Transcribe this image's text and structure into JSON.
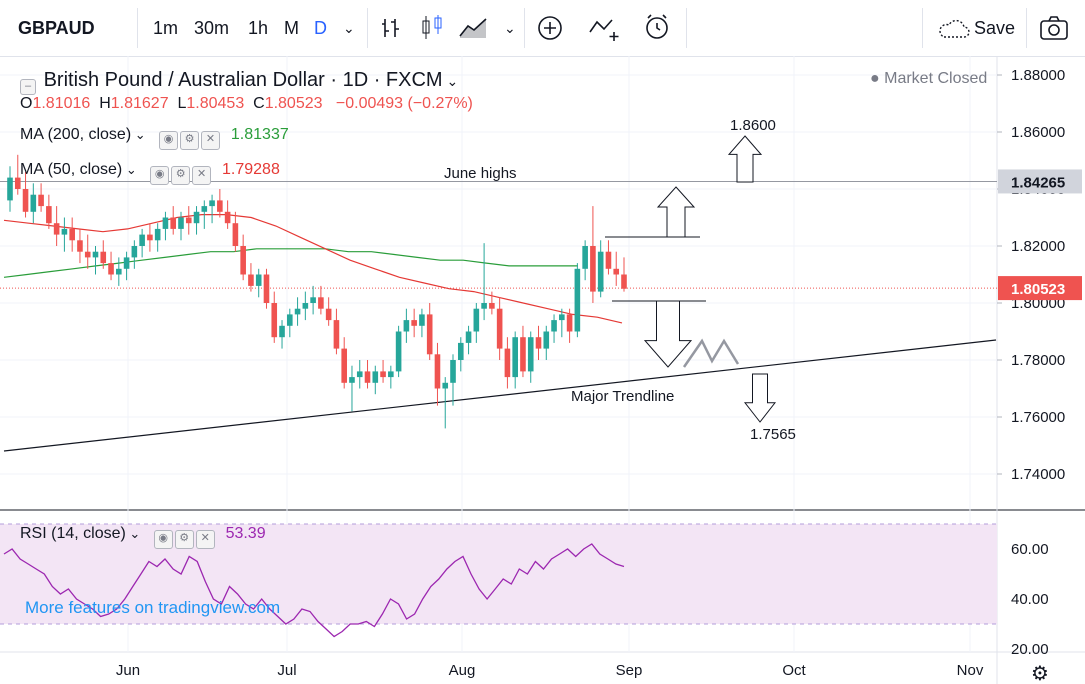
{
  "toolbar": {
    "symbol": "GBPAUD",
    "intervals": [
      "1m",
      "30m",
      "1h",
      "M",
      "D"
    ],
    "active_interval": "D",
    "save_label": "Save"
  },
  "legend": {
    "title": "British Pound / Australian Dollar · 1D · FXCM",
    "ohlc": {
      "O": "1.81016",
      "H": "1.81627",
      "L": "1.80453",
      "C": "1.80523",
      "change": "−0.00493 (−0.27%)"
    },
    "ma200": {
      "label": "MA (200, close)",
      "value": "1.81337",
      "color": "#2a9d3a"
    },
    "ma50": {
      "label": "MA (50, close)",
      "value": "1.79288",
      "color": "#e53935"
    },
    "market_status": "Market Closed"
  },
  "rsi": {
    "label": "RSI (14, close)",
    "value": "53.39",
    "color": "#9c27b0",
    "upper": 70,
    "lower": 30
  },
  "watermark": "More features on tradingview.com",
  "colors": {
    "up": "#26a69a",
    "down": "#ef5350",
    "rsi_band": "#f3e5f5"
  },
  "chart_data": {
    "type": "candlestick",
    "y_ticks": [
      "1.88000",
      "1.86000",
      "1.84000",
      "1.82000",
      "1.80000",
      "1.78000",
      "1.76000",
      "1.74000"
    ],
    "rsi_ticks": [
      "60.00",
      "40.00",
      "20.00"
    ],
    "x_labels": [
      "Jun",
      "Jul",
      "Aug",
      "Sep",
      "Oct",
      "Nov"
    ],
    "price_tags": [
      {
        "value": "1.84265",
        "bg": "#d1d4dc",
        "fg": "#131722"
      },
      {
        "value": "1.80523",
        "bg": "#ef5350",
        "fg": "#ffffff"
      }
    ],
    "annotations": {
      "june_highs": "June highs",
      "major_trendline": "Major Trendline",
      "target_up": "1.8600",
      "target_down": "1.7565"
    },
    "candles": [
      [
        1.836,
        1.848,
        1.832,
        1.844
      ],
      [
        1.844,
        1.852,
        1.838,
        1.84
      ],
      [
        1.84,
        1.846,
        1.83,
        1.832
      ],
      [
        1.832,
        1.842,
        1.828,
        1.838
      ],
      [
        1.838,
        1.842,
        1.832,
        1.834
      ],
      [
        1.834,
        1.838,
        1.826,
        1.828
      ],
      [
        1.828,
        1.834,
        1.82,
        1.824
      ],
      [
        1.824,
        1.83,
        1.818,
        1.826
      ],
      [
        1.826,
        1.83,
        1.818,
        1.822
      ],
      [
        1.822,
        1.826,
        1.814,
        1.818
      ],
      [
        1.818,
        1.824,
        1.812,
        1.816
      ],
      [
        1.816,
        1.82,
        1.81,
        1.818
      ],
      [
        1.818,
        1.822,
        1.812,
        1.814
      ],
      [
        1.814,
        1.818,
        1.808,
        1.81
      ],
      [
        1.81,
        1.816,
        1.806,
        1.812
      ],
      [
        1.812,
        1.818,
        1.808,
        1.816
      ],
      [
        1.816,
        1.822,
        1.812,
        1.82
      ],
      [
        1.82,
        1.826,
        1.816,
        1.824
      ],
      [
        1.824,
        1.828,
        1.818,
        1.822
      ],
      [
        1.822,
        1.828,
        1.818,
        1.826
      ],
      [
        1.826,
        1.832,
        1.822,
        1.83
      ],
      [
        1.83,
        1.834,
        1.824,
        1.826
      ],
      [
        1.826,
        1.832,
        1.822,
        1.83
      ],
      [
        1.83,
        1.834,
        1.824,
        1.828
      ],
      [
        1.828,
        1.834,
        1.824,
        1.832
      ],
      [
        1.832,
        1.836,
        1.826,
        1.834
      ],
      [
        1.834,
        1.838,
        1.828,
        1.836
      ],
      [
        1.836,
        1.84,
        1.83,
        1.832
      ],
      [
        1.832,
        1.836,
        1.826,
        1.828
      ],
      [
        1.828,
        1.832,
        1.818,
        1.82
      ],
      [
        1.82,
        1.824,
        1.808,
        1.81
      ],
      [
        1.81,
        1.814,
        1.804,
        1.806
      ],
      [
        1.806,
        1.812,
        1.802,
        1.81
      ],
      [
        1.81,
        1.812,
        1.798,
        1.8
      ],
      [
        1.8,
        1.804,
        1.786,
        1.788
      ],
      [
        1.788,
        1.794,
        1.784,
        1.792
      ],
      [
        1.792,
        1.798,
        1.788,
        1.796
      ],
      [
        1.796,
        1.802,
        1.792,
        1.798
      ],
      [
        1.798,
        1.804,
        1.794,
        1.8
      ],
      [
        1.8,
        1.806,
        1.796,
        1.802
      ],
      [
        1.802,
        1.806,
        1.796,
        1.798
      ],
      [
        1.798,
        1.802,
        1.792,
        1.794
      ],
      [
        1.794,
        1.798,
        1.782,
        1.784
      ],
      [
        1.784,
        1.788,
        1.77,
        1.772
      ],
      [
        1.772,
        1.778,
        1.762,
        1.774
      ],
      [
        1.774,
        1.78,
        1.77,
        1.776
      ],
      [
        1.776,
        1.78,
        1.77,
        1.772
      ],
      [
        1.772,
        1.778,
        1.768,
        1.776
      ],
      [
        1.776,
        1.78,
        1.772,
        1.774
      ],
      [
        1.774,
        1.778,
        1.77,
        1.776
      ],
      [
        1.776,
        1.792,
        1.774,
        1.79
      ],
      [
        1.79,
        1.798,
        1.786,
        1.794
      ],
      [
        1.794,
        1.798,
        1.788,
        1.792
      ],
      [
        1.792,
        1.798,
        1.788,
        1.796
      ],
      [
        1.796,
        1.8,
        1.78,
        1.782
      ],
      [
        1.782,
        1.786,
        1.764,
        1.77
      ],
      [
        1.77,
        1.774,
        1.756,
        1.772
      ],
      [
        1.772,
        1.782,
        1.764,
        1.78
      ],
      [
        1.78,
        1.788,
        1.776,
        1.786
      ],
      [
        1.786,
        1.792,
        1.782,
        1.79
      ],
      [
        1.79,
        1.8,
        1.786,
        1.798
      ],
      [
        1.798,
        1.821,
        1.794,
        1.8
      ],
      [
        1.8,
        1.804,
        1.796,
        1.798
      ],
      [
        1.798,
        1.802,
        1.78,
        1.784
      ],
      [
        1.784,
        1.788,
        1.77,
        1.774
      ],
      [
        1.774,
        1.79,
        1.77,
        1.788
      ],
      [
        1.788,
        1.792,
        1.774,
        1.776
      ],
      [
        1.776,
        1.79,
        1.772,
        1.788
      ],
      [
        1.788,
        1.792,
        1.78,
        1.784
      ],
      [
        1.784,
        1.792,
        1.78,
        1.79
      ],
      [
        1.79,
        1.796,
        1.786,
        1.794
      ],
      [
        1.794,
        1.798,
        1.788,
        1.796
      ],
      [
        1.796,
        1.798,
        1.786,
        1.79
      ],
      [
        1.79,
        1.814,
        1.788,
        1.812
      ],
      [
        1.812,
        1.822,
        1.808,
        1.82
      ],
      [
        1.82,
        1.834,
        1.8,
        1.804
      ],
      [
        1.804,
        1.822,
        1.802,
        1.818
      ],
      [
        1.818,
        1.822,
        1.81,
        1.812
      ],
      [
        1.812,
        1.818,
        1.806,
        1.81
      ],
      [
        1.81,
        1.816,
        1.804,
        1.805
      ]
    ],
    "ma200": [
      1.809,
      1.81,
      1.811,
      1.812,
      1.813,
      1.814,
      1.815,
      1.816,
      1.817,
      1.818,
      1.818,
      1.819,
      1.819,
      1.819,
      1.819,
      1.818,
      1.818,
      1.817,
      1.816,
      1.815,
      1.815,
      1.814,
      1.813,
      1.813,
      1.813,
      1.813
    ],
    "ma50": [
      1.829,
      1.828,
      1.827,
      1.826,
      1.825,
      1.826,
      1.828,
      1.83,
      1.831,
      1.831,
      1.83,
      1.827,
      1.823,
      1.819,
      1.815,
      1.812,
      1.809,
      1.807,
      1.805,
      1.804,
      1.802,
      1.8,
      1.798,
      1.796,
      1.795,
      1.793
    ],
    "rsi_values": [
      58,
      60,
      56,
      54,
      52,
      50,
      45,
      42,
      44,
      40,
      38,
      36,
      33,
      34,
      36,
      40,
      45,
      50,
      55,
      53,
      56,
      52,
      50,
      57,
      55,
      47,
      40,
      38,
      45,
      42,
      38,
      36,
      40,
      36,
      33,
      30,
      32,
      36,
      35,
      31,
      28,
      25,
      27,
      30,
      30,
      31,
      29,
      34,
      40,
      38,
      32,
      34,
      40,
      45,
      48,
      52,
      55,
      57,
      50,
      44,
      40,
      44,
      48,
      46,
      52,
      50,
      55,
      52,
      56,
      58,
      60,
      57,
      60,
      62,
      58,
      56,
      54,
      53
    ]
  }
}
